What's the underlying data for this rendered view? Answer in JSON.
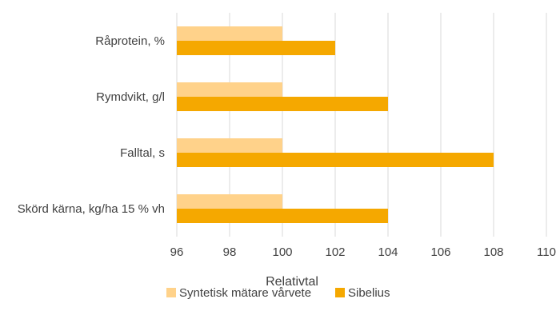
{
  "chart_data": {
    "type": "bar",
    "orientation": "horizontal",
    "categories": [
      "Råprotein, %",
      "Rymdvikt, g/l",
      "Falltal, s",
      "Skörd kärna, kg/ha 15 % vh"
    ],
    "series": [
      {
        "name": "Syntetisk mätare vårvete",
        "color": "#FFD28A",
        "values": [
          100,
          100,
          100,
          100
        ]
      },
      {
        "name": "Sibelius",
        "color": "#F5A800",
        "values": [
          102,
          104,
          108,
          104
        ]
      }
    ],
    "xlabel": "Relativtal",
    "xlim": [
      96,
      110
    ],
    "xticks": [
      96,
      98,
      100,
      102,
      104,
      106,
      108,
      110
    ],
    "grid": "vertical",
    "legend_position": "bottom"
  }
}
